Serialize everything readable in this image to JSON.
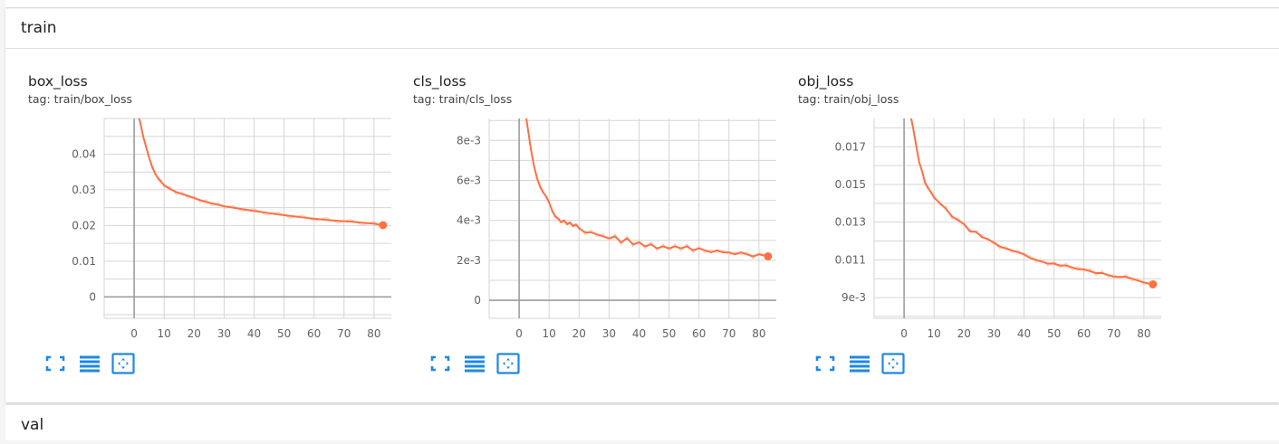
{
  "groups": [
    {
      "title": "train"
    },
    {
      "title": "val"
    }
  ],
  "colors": {
    "line": "#ff7043",
    "raw": "#ffccbc",
    "grid": "#d6d6d6",
    "axis": "#9e9e9e",
    "tool": "#1e88e5"
  },
  "tool_icons": [
    "fit-domain-icon",
    "toggle-log-icon",
    "toggle-expand-icon"
  ],
  "cards": [
    {
      "title": "box_loss",
      "tag": "tag: train/box_loss",
      "chart_data": {
        "type": "line",
        "x_ticks": [
          "0",
          "10",
          "20",
          "30",
          "40",
          "50",
          "60",
          "70",
          "80"
        ],
        "y_ticks": [
          "0",
          "0.01",
          "0.02",
          "0.03",
          "0.04"
        ],
        "y_tick_values": [
          0,
          0.01,
          0.02,
          0.03,
          0.04
        ],
        "xlim": [
          -10,
          90
        ],
        "ylim": [
          -0.006,
          0.05
        ],
        "grid": true,
        "series": [
          {
            "x": [
              1,
              2,
              3,
              4,
              5,
              6,
              7,
              8,
              9,
              10,
              12,
              14,
              16,
              18,
              20,
              22,
              24,
              26,
              28,
              30,
              33,
              36,
              40,
              44,
              48,
              52,
              56,
              60,
              64,
              68,
              72,
              76,
              80,
              83
            ],
            "y": [
              0.052,
              0.049,
              0.045,
              0.042,
              0.039,
              0.0365,
              0.0345,
              0.0333,
              0.0322,
              0.0313,
              0.0302,
              0.0294,
              0.0288,
              0.0283,
              0.0277,
              0.0271,
              0.0266,
              0.0262,
              0.0258,
              0.0254,
              0.025,
              0.0246,
              0.0241,
              0.0236,
              0.0231,
              0.0227,
              0.0223,
              0.0219,
              0.0216,
              0.0213,
              0.0211,
              0.0208,
              0.0205,
              0.0201
            ],
            "final": [
              83,
              0.0201
            ]
          }
        ]
      }
    },
    {
      "title": "cls_loss",
      "tag": "tag: train/cls_loss",
      "chart_data": {
        "type": "line",
        "x_ticks": [
          "0",
          "10",
          "20",
          "30",
          "40",
          "50",
          "60",
          "70",
          "80"
        ],
        "y_ticks": [
          "0",
          "2e-3",
          "4e-3",
          "6e-3",
          "8e-3"
        ],
        "y_tick_values": [
          0,
          0.002,
          0.004,
          0.006,
          0.008
        ],
        "xlim": [
          -10,
          90
        ],
        "ylim": [
          -0.0009,
          0.0091
        ],
        "grid": true,
        "series": [
          {
            "x": [
              2,
              3,
              4,
              5,
              6,
              7,
              8,
              9,
              10,
              11,
              12,
              13,
              14,
              15,
              16,
              17,
              18,
              19,
              20,
              22,
              24,
              26,
              28,
              30,
              32,
              34,
              36,
              38,
              40,
              42,
              44,
              46,
              48,
              50,
              52,
              54,
              56,
              58,
              60,
              62,
              64,
              66,
              68,
              70,
              72,
              74,
              76,
              78,
              80,
              83
            ],
            "y": [
              0.0095,
              0.0085,
              0.0075,
              0.0067,
              0.0061,
              0.0057,
              0.0054,
              0.0052,
              0.0049,
              0.0045,
              0.0042,
              0.0041,
              0.0039,
              0.004,
              0.0038,
              0.0039,
              0.0037,
              0.0038,
              0.0036,
              0.0034,
              0.0034,
              0.0033,
              0.0032,
              0.0031,
              0.0032,
              0.0029,
              0.0031,
              0.0028,
              0.0029,
              0.0027,
              0.0028,
              0.0026,
              0.0027,
              0.0026,
              0.0027,
              0.0026,
              0.0027,
              0.0025,
              0.0026,
              0.0025,
              0.0024,
              0.0025,
              0.0024,
              0.0024,
              0.0023,
              0.0024,
              0.0023,
              0.0022,
              0.0023,
              0.0022
            ],
            "final": [
              83,
              0.0022
            ]
          }
        ]
      }
    },
    {
      "title": "obj_loss",
      "tag": "tag: train/obj_loss",
      "chart_data": {
        "type": "line",
        "x_ticks": [
          "0",
          "10",
          "20",
          "30",
          "40",
          "50",
          "60",
          "70",
          "80"
        ],
        "y_ticks": [
          "9e-3",
          "0.011",
          "0.013",
          "0.015",
          "0.017"
        ],
        "y_tick_values": [
          0.009,
          0.011,
          0.013,
          0.015,
          0.017
        ],
        "xlim": [
          -10,
          90
        ],
        "ylim": [
          0.0079,
          0.0185
        ],
        "grid": true,
        "series": [
          {
            "x": [
              2,
              3,
              4,
              5,
              6,
              7,
              8,
              9,
              10,
              12,
              14,
              16,
              18,
              20,
              22,
              24,
              26,
              28,
              30,
              32,
              34,
              36,
              38,
              40,
              42,
              44,
              46,
              48,
              50,
              52,
              54,
              56,
              58,
              60,
              62,
              64,
              66,
              68,
              70,
              72,
              74,
              76,
              78,
              80,
              83
            ],
            "y": [
              0.0188,
              0.018,
              0.0171,
              0.0162,
              0.0157,
              0.0151,
              0.0148,
              0.0146,
              0.0143,
              0.014,
              0.0137,
              0.0133,
              0.0131,
              0.0129,
              0.0125,
              0.0125,
              0.0122,
              0.0121,
              0.0119,
              0.0117,
              0.0116,
              0.0115,
              0.0114,
              0.0113,
              0.0111,
              0.011,
              0.0109,
              0.0108,
              0.0108,
              0.0107,
              0.0107,
              0.0106,
              0.0105,
              0.0105,
              0.0104,
              0.0103,
              0.0103,
              0.0102,
              0.0101,
              0.0101,
              0.0101,
              0.01,
              0.0099,
              0.0098,
              0.0097
            ],
            "final": [
              83,
              0.0097
            ]
          }
        ]
      }
    }
  ]
}
